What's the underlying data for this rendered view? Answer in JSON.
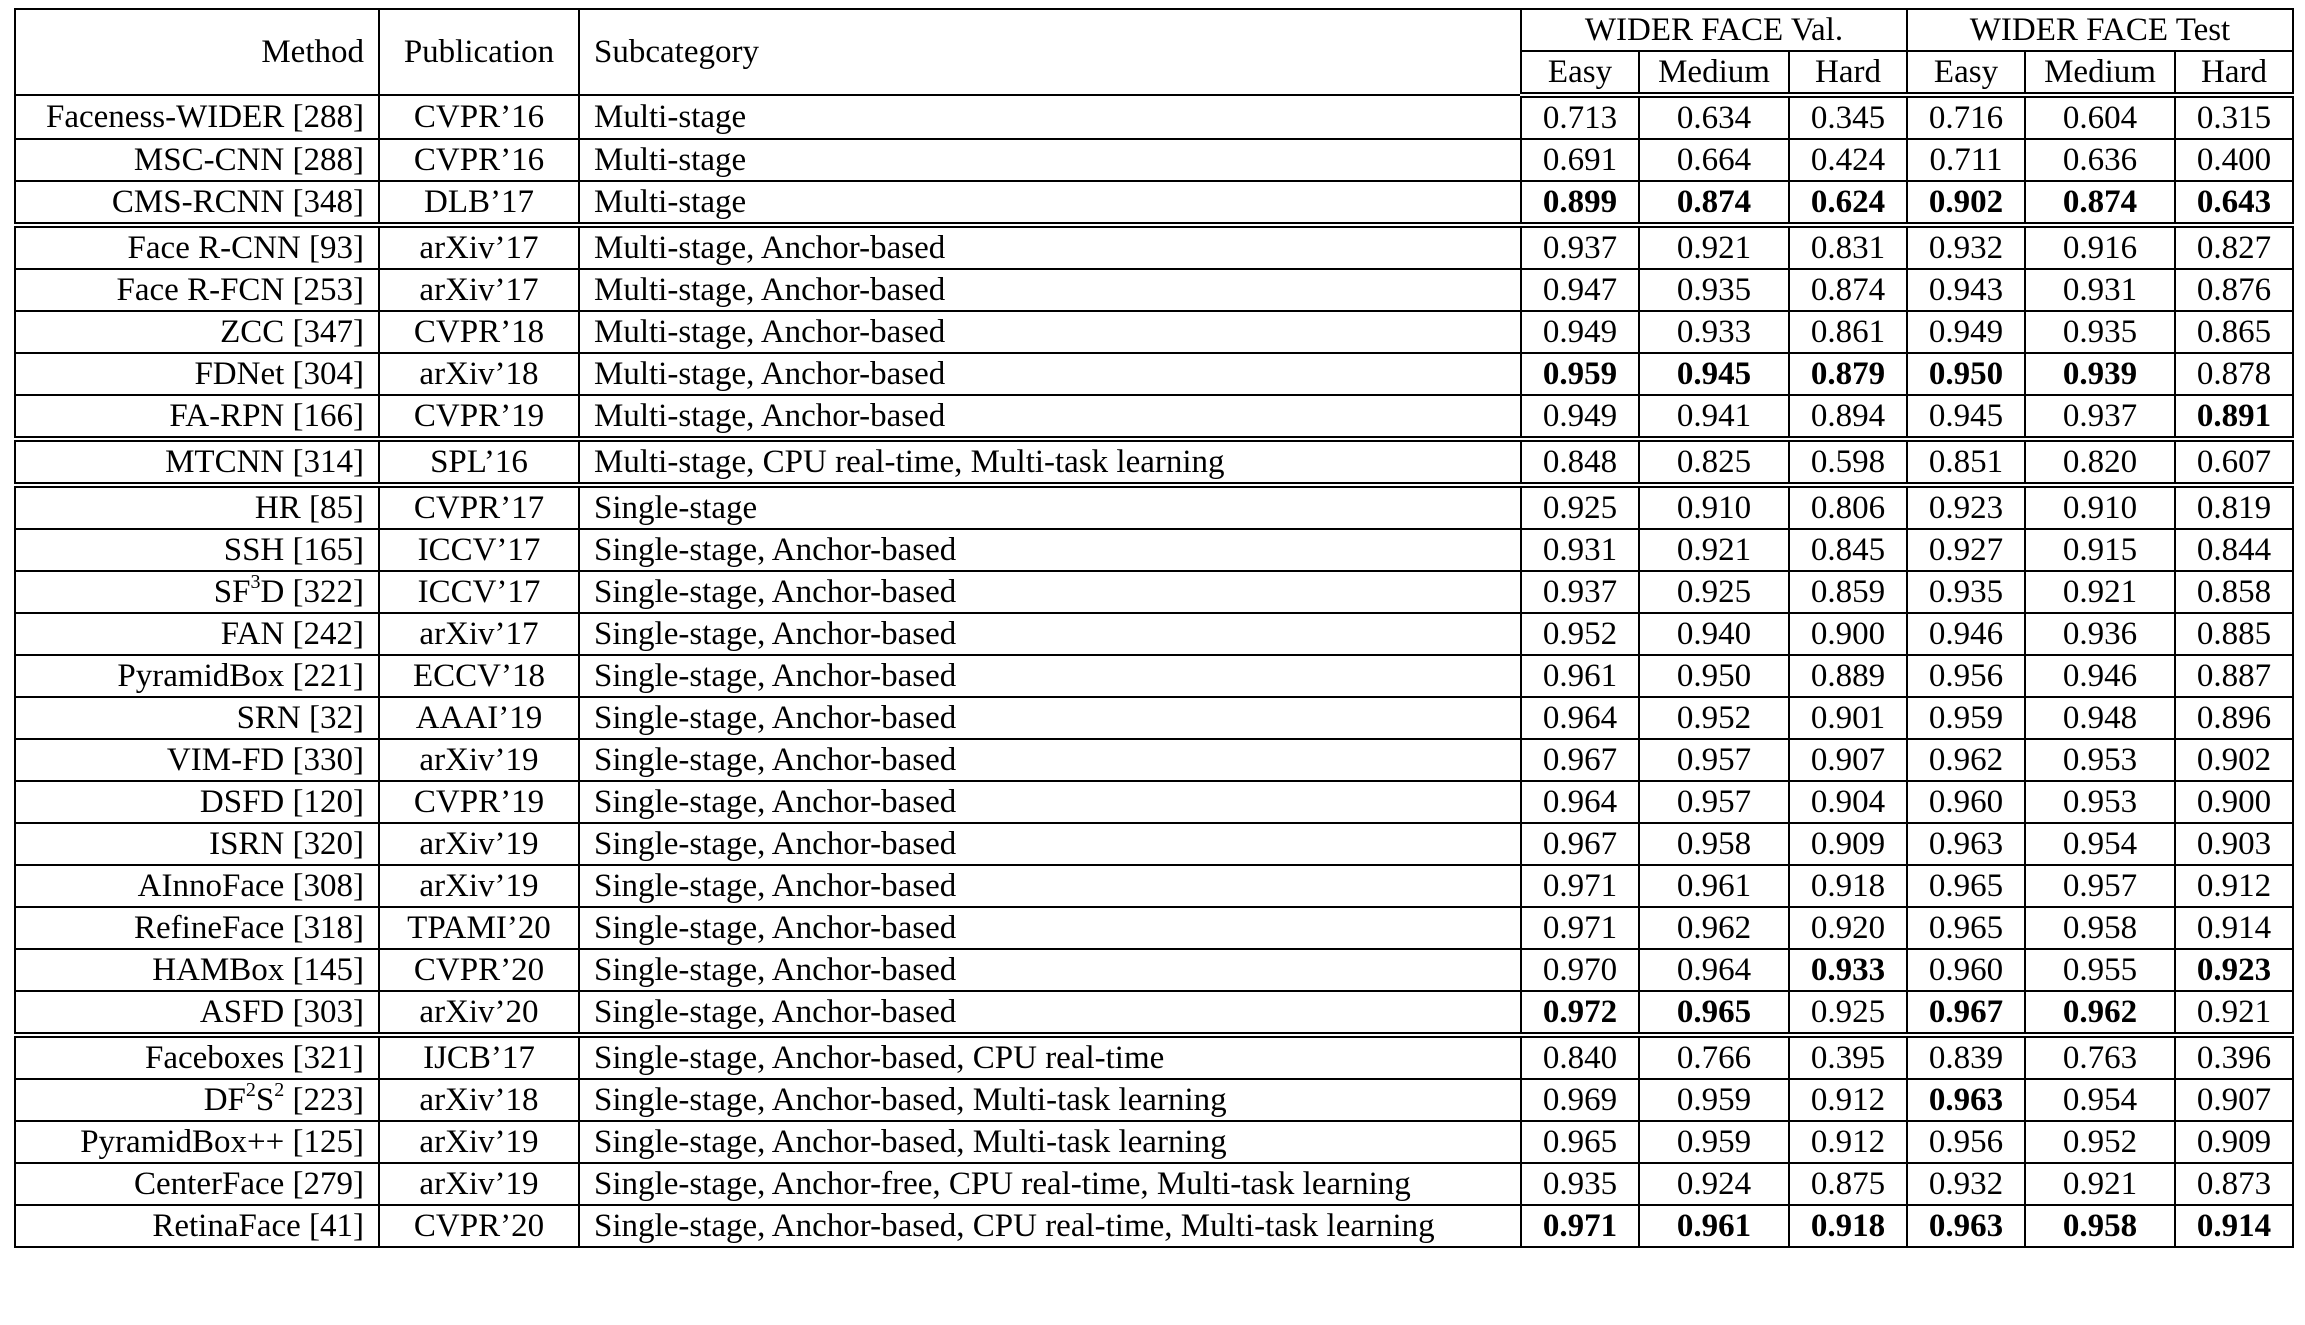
{
  "header": {
    "method": "Method",
    "publication": "Publication",
    "subcategory": "Subcategory",
    "val_group": "WIDER FACE Val.",
    "test_group": "WIDER FACE Test",
    "easy": "Easy",
    "medium": "Medium",
    "hard": "Hard"
  },
  "rows": [
    {
      "method": "Faceness-WIDER [288]",
      "pub": "CVPR’16",
      "sub": "Multi-stage",
      "v": [
        "0.713",
        "0.634",
        "0.345",
        "0.716",
        "0.604",
        "0.315"
      ],
      "bold": [
        false,
        false,
        false,
        false,
        false,
        false
      ],
      "group_end": false
    },
    {
      "method": "MSC-CNN [288]",
      "pub": "CVPR’16",
      "sub": "Multi-stage",
      "v": [
        "0.691",
        "0.664",
        "0.424",
        "0.711",
        "0.636",
        "0.400"
      ],
      "bold": [
        false,
        false,
        false,
        false,
        false,
        false
      ],
      "group_end": false
    },
    {
      "method": "CMS-RCNN [348]",
      "pub": "DLB’17",
      "sub": "Multi-stage",
      "v": [
        "0.899",
        "0.874",
        "0.624",
        "0.902",
        "0.874",
        "0.643"
      ],
      "bold": [
        true,
        true,
        true,
        true,
        true,
        true
      ],
      "group_end": true
    },
    {
      "method": "Face R-CNN [93]",
      "pub": "arXiv’17",
      "sub": "Multi-stage, Anchor-based",
      "v": [
        "0.937",
        "0.921",
        "0.831",
        "0.932",
        "0.916",
        "0.827"
      ],
      "bold": [
        false,
        false,
        false,
        false,
        false,
        false
      ],
      "group_end": false
    },
    {
      "method": "Face R-FCN [253]",
      "pub": "arXiv’17",
      "sub": "Multi-stage, Anchor-based",
      "v": [
        "0.947",
        "0.935",
        "0.874",
        "0.943",
        "0.931",
        "0.876"
      ],
      "bold": [
        false,
        false,
        false,
        false,
        false,
        false
      ],
      "group_end": false
    },
    {
      "method": "ZCC [347]",
      "pub": "CVPR’18",
      "sub": "Multi-stage, Anchor-based",
      "v": [
        "0.949",
        "0.933",
        "0.861",
        "0.949",
        "0.935",
        "0.865"
      ],
      "bold": [
        false,
        false,
        false,
        false,
        false,
        false
      ],
      "group_end": false
    },
    {
      "method": "FDNet [304]",
      "pub": "arXiv’18",
      "sub": "Multi-stage, Anchor-based",
      "v": [
        "0.959",
        "0.945",
        "0.879",
        "0.950",
        "0.939",
        "0.878"
      ],
      "bold": [
        true,
        true,
        true,
        true,
        true,
        false
      ],
      "group_end": false
    },
    {
      "method": "FA-RPN [166]",
      "pub": "CVPR’19",
      "sub": "Multi-stage, Anchor-based",
      "v": [
        "0.949",
        "0.941",
        "0.894",
        "0.945",
        "0.937",
        "0.891"
      ],
      "bold": [
        false,
        false,
        false,
        false,
        false,
        true
      ],
      "group_end": true
    },
    {
      "method": "MTCNN [314]",
      "pub": "SPL’16",
      "sub": "Multi-stage, CPU real-time, Multi-task learning",
      "v": [
        "0.848",
        "0.825",
        "0.598",
        "0.851",
        "0.820",
        "0.607"
      ],
      "bold": [
        false,
        false,
        false,
        false,
        false,
        false
      ],
      "group_end": true
    },
    {
      "method": "HR [85]",
      "pub": "CVPR’17",
      "sub": "Single-stage",
      "v": [
        "0.925",
        "0.910",
        "0.806",
        "0.923",
        "0.910",
        "0.819"
      ],
      "bold": [
        false,
        false,
        false,
        false,
        false,
        false
      ],
      "group_end": false
    },
    {
      "method": "SSH [165]",
      "pub": "ICCV’17",
      "sub": "Single-stage, Anchor-based",
      "v": [
        "0.931",
        "0.921",
        "0.845",
        "0.927",
        "0.915",
        "0.844"
      ],
      "bold": [
        false,
        false,
        false,
        false,
        false,
        false
      ],
      "group_end": false
    },
    {
      "method": "SF³D [322]",
      "method_html_parts": [
        "SF",
        "3",
        "D [322]"
      ],
      "pub": "ICCV’17",
      "sub": "Single-stage, Anchor-based",
      "v": [
        "0.937",
        "0.925",
        "0.859",
        "0.935",
        "0.921",
        "0.858"
      ],
      "bold": [
        false,
        false,
        false,
        false,
        false,
        false
      ],
      "group_end": false
    },
    {
      "method": "FAN [242]",
      "pub": "arXiv’17",
      "sub": "Single-stage, Anchor-based",
      "v": [
        "0.952",
        "0.940",
        "0.900",
        "0.946",
        "0.936",
        "0.885"
      ],
      "bold": [
        false,
        false,
        false,
        false,
        false,
        false
      ],
      "group_end": false
    },
    {
      "method": "PyramidBox [221]",
      "pub": "ECCV’18",
      "sub": "Single-stage, Anchor-based",
      "v": [
        "0.961",
        "0.950",
        "0.889",
        "0.956",
        "0.946",
        "0.887"
      ],
      "bold": [
        false,
        false,
        false,
        false,
        false,
        false
      ],
      "group_end": false
    },
    {
      "method": "SRN [32]",
      "pub": "AAAI’19",
      "sub": "Single-stage, Anchor-based",
      "v": [
        "0.964",
        "0.952",
        "0.901",
        "0.959",
        "0.948",
        "0.896"
      ],
      "bold": [
        false,
        false,
        false,
        false,
        false,
        false
      ],
      "group_end": false
    },
    {
      "method": "VIM-FD [330]",
      "pub": "arXiv’19",
      "sub": "Single-stage, Anchor-based",
      "v": [
        "0.967",
        "0.957",
        "0.907",
        "0.962",
        "0.953",
        "0.902"
      ],
      "bold": [
        false,
        false,
        false,
        false,
        false,
        false
      ],
      "group_end": false
    },
    {
      "method": "DSFD [120]",
      "pub": "CVPR’19",
      "sub": "Single-stage, Anchor-based",
      "v": [
        "0.964",
        "0.957",
        "0.904",
        "0.960",
        "0.953",
        "0.900"
      ],
      "bold": [
        false,
        false,
        false,
        false,
        false,
        false
      ],
      "group_end": false
    },
    {
      "method": "ISRN [320]",
      "pub": "arXiv’19",
      "sub": "Single-stage, Anchor-based",
      "v": [
        "0.967",
        "0.958",
        "0.909",
        "0.963",
        "0.954",
        "0.903"
      ],
      "bold": [
        false,
        false,
        false,
        false,
        false,
        false
      ],
      "group_end": false
    },
    {
      "method": "AInnoFace [308]",
      "pub": "arXiv’19",
      "sub": "Single-stage, Anchor-based",
      "v": [
        "0.971",
        "0.961",
        "0.918",
        "0.965",
        "0.957",
        "0.912"
      ],
      "bold": [
        false,
        false,
        false,
        false,
        false,
        false
      ],
      "group_end": false
    },
    {
      "method": "RefineFace [318]",
      "pub": "TPAMI’20",
      "sub": "Single-stage, Anchor-based",
      "v": [
        "0.971",
        "0.962",
        "0.920",
        "0.965",
        "0.958",
        "0.914"
      ],
      "bold": [
        false,
        false,
        false,
        false,
        false,
        false
      ],
      "group_end": false
    },
    {
      "method": "HAMBox [145]",
      "pub": "CVPR’20",
      "sub": "Single-stage, Anchor-based",
      "v": [
        "0.970",
        "0.964",
        "0.933",
        "0.960",
        "0.955",
        "0.923"
      ],
      "bold": [
        false,
        false,
        true,
        false,
        false,
        true
      ],
      "group_end": false
    },
    {
      "method": "ASFD [303]",
      "pub": "arXiv’20",
      "sub": "Single-stage, Anchor-based",
      "v": [
        "0.972",
        "0.965",
        "0.925",
        "0.967",
        "0.962",
        "0.921"
      ],
      "bold": [
        true,
        true,
        false,
        true,
        true,
        false
      ],
      "group_end": true
    },
    {
      "method": "Faceboxes [321]",
      "pub": "IJCB’17",
      "sub": "Single-stage, Anchor-based, CPU real-time",
      "v": [
        "0.840",
        "0.766",
        "0.395",
        "0.839",
        "0.763",
        "0.396"
      ],
      "bold": [
        false,
        false,
        false,
        false,
        false,
        false
      ],
      "group_end": false
    },
    {
      "method": "DF²S² [223]",
      "method_html_parts": [
        "DF",
        "2",
        "S",
        "2",
        " [223]"
      ],
      "pub": "arXiv’18",
      "sub": "Single-stage, Anchor-based, Multi-task learning",
      "v": [
        "0.969",
        "0.959",
        "0.912",
        "0.963",
        "0.954",
        "0.907"
      ],
      "bold": [
        false,
        false,
        false,
        true,
        false,
        false
      ],
      "group_end": false
    },
    {
      "method": "PyramidBox++ [125]",
      "pub": "arXiv’19",
      "sub": "Single-stage, Anchor-based, Multi-task learning",
      "v": [
        "0.965",
        "0.959",
        "0.912",
        "0.956",
        "0.952",
        "0.909"
      ],
      "bold": [
        false,
        false,
        false,
        false,
        false,
        false
      ],
      "group_end": false
    },
    {
      "method": "CenterFace [279]",
      "pub": "arXiv’19",
      "sub": "Single-stage, Anchor-free, CPU real-time, Multi-task learning",
      "v": [
        "0.935",
        "0.924",
        "0.875",
        "0.932",
        "0.921",
        "0.873"
      ],
      "bold": [
        false,
        false,
        false,
        false,
        false,
        false
      ],
      "group_end": false
    },
    {
      "method": "RetinaFace [41]",
      "pub": "CVPR’20",
      "sub": "Single-stage, Anchor-based, CPU real-time, Multi-task learning",
      "v": [
        "0.971",
        "0.961",
        "0.918",
        "0.963",
        "0.958",
        "0.914"
      ],
      "bold": [
        true,
        true,
        true,
        true,
        true,
        true
      ],
      "group_end": false
    }
  ]
}
